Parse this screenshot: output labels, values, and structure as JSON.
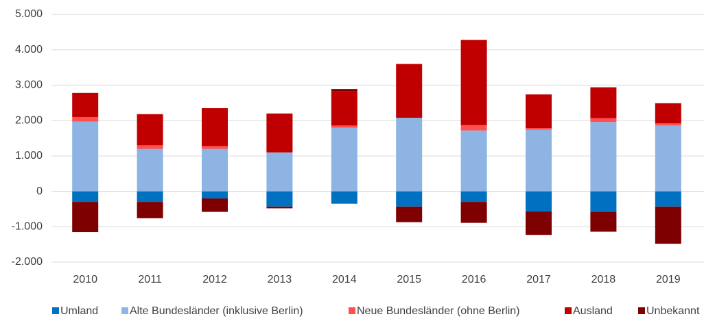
{
  "chart_data": {
    "type": "stacked_bar",
    "categories": [
      "2010",
      "2011",
      "2012",
      "2013",
      "2014",
      "2015",
      "2016",
      "2017",
      "2018",
      "2019"
    ],
    "series": [
      {
        "name": "Umland",
        "color": "#0070c0",
        "values": [
          -300,
          -300,
          -200,
          -430,
          -350,
          -430,
          -300,
          -570,
          -580,
          -430
        ]
      },
      {
        "name": "Alte Bundesländer (inklusive Berlin)",
        "color": "#8eb4e3",
        "values": [
          1970,
          1200,
          1200,
          1100,
          1800,
          2080,
          1720,
          1740,
          1960,
          1860
        ]
      },
      {
        "name": "Neue Bundesländer (ohne Berlin)",
        "color": "#ff5050",
        "values": [
          130,
          100,
          80,
          0,
          60,
          0,
          150,
          50,
          110,
          60
        ]
      },
      {
        "name": "Ausland",
        "color": "#c00000",
        "values": [
          680,
          880,
          1070,
          1100,
          960,
          1520,
          2410,
          950,
          870,
          570
        ]
      },
      {
        "name": "Unbekannt",
        "color": "#7f0000",
        "values": [
          -850,
          -460,
          -380,
          -50,
          70,
          -440,
          -590,
          -660,
          -560,
          -1050
        ]
      }
    ],
    "ylim": [
      -2000,
      5000
    ],
    "yticks": [
      {
        "value": -2000,
        "label": "-2.000"
      },
      {
        "value": -1000,
        "label": "-1.000"
      },
      0,
      {
        "value": 1000,
        "label": "1.000"
      },
      {
        "value": 2000,
        "label": "2.000"
      },
      {
        "value": 3000,
        "label": "3.000"
      },
      {
        "value": 4000,
        "label": "4.000"
      },
      {
        "value": 5000,
        "label": "5.000"
      }
    ],
    "grid": true,
    "legend": "bottom"
  }
}
